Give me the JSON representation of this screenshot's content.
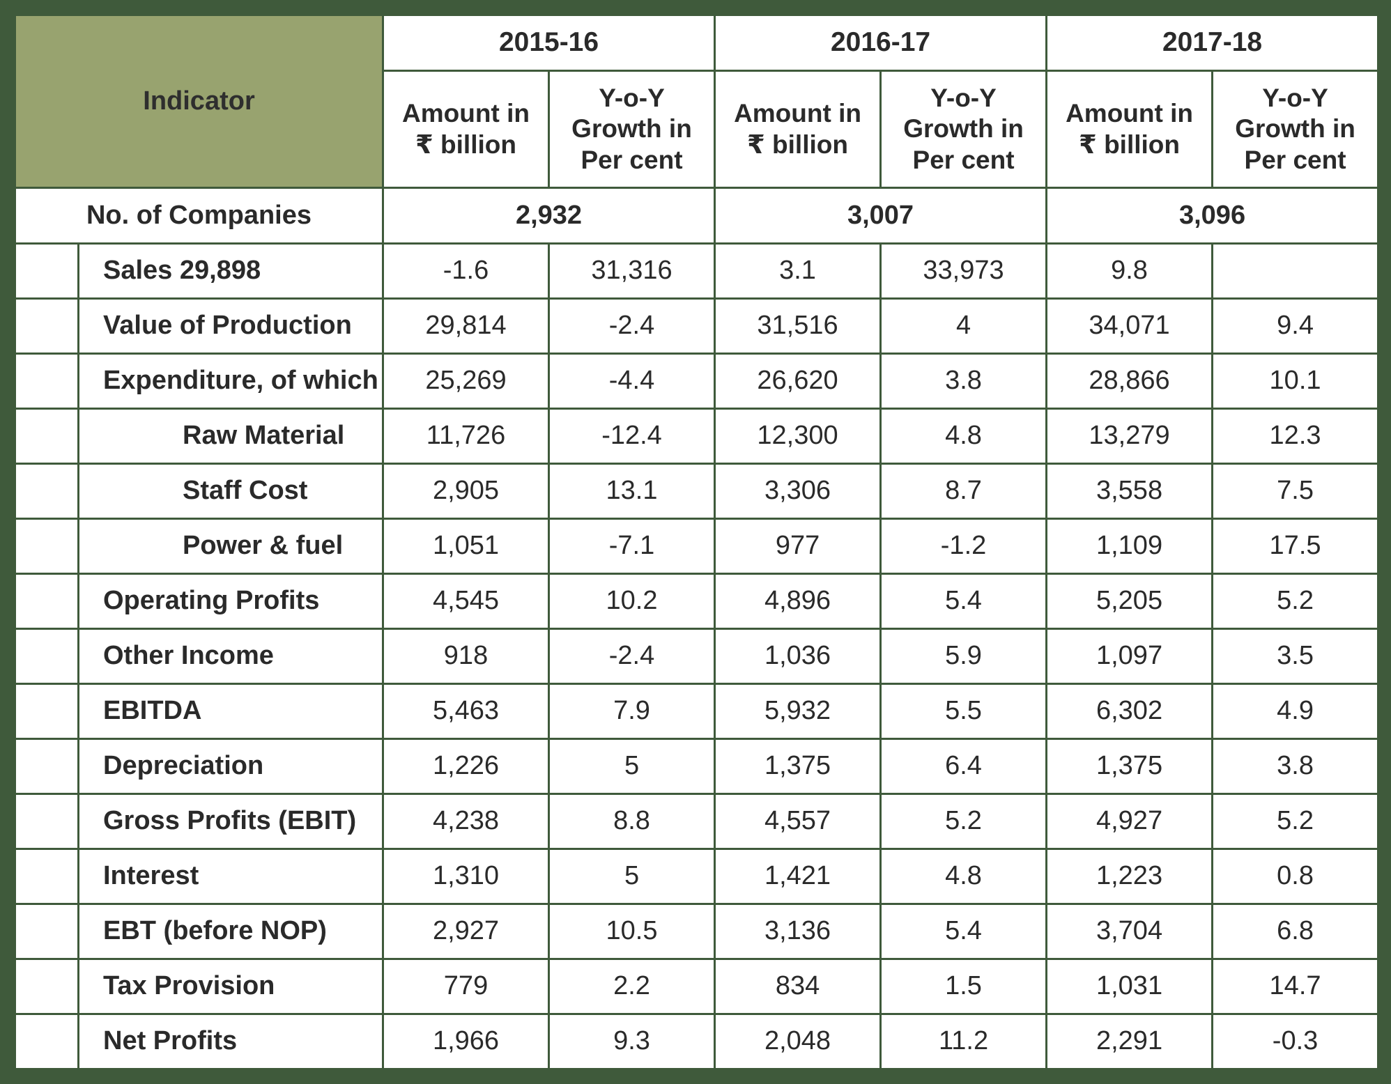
{
  "header": {
    "indicator": "Indicator",
    "years": [
      "2015-16",
      "2016-17",
      "2017-18"
    ],
    "amount_line1": "Amount in",
    "amount_line2": "₹ billion",
    "growth_line1": "Y-o-Y",
    "growth_line2": "Growth in",
    "growth_line3": "Per cent"
  },
  "companies": {
    "label": "No. of Companies",
    "values": [
      "2,932",
      "3,007",
      "3,096"
    ]
  },
  "rows": [
    {
      "label": "Sales  29,898",
      "cells": [
        "-1.6",
        "31,316",
        "3.1",
        "33,973",
        "9.8",
        ""
      ]
    },
    {
      "label": "Value of Production",
      "cells": [
        "29,814",
        "-2.4",
        "31,516",
        "4",
        "34,071",
        "9.4"
      ]
    },
    {
      "label": "Expenditure, of which",
      "cells": [
        "25,269",
        "-4.4",
        "26,620",
        "3.8",
        "28,866",
        "10.1"
      ]
    },
    {
      "label": "Raw Material",
      "cells": [
        "11,726",
        "-12.4",
        "12,300",
        "4.8",
        "13,279",
        "12.3"
      ]
    },
    {
      "label": "Staff Cost",
      "cells": [
        "2,905",
        "13.1",
        "3,306",
        "8.7",
        "3,558",
        "7.5"
      ]
    },
    {
      "label": "Power & fuel",
      "cells": [
        "1,051",
        "-7.1",
        "977",
        "-1.2",
        "1,109",
        "17.5"
      ]
    },
    {
      "label": "Operating Profits",
      "cells": [
        "4,545",
        "10.2",
        "4,896",
        "5.4",
        "5,205",
        "5.2"
      ]
    },
    {
      "label": "Other Income",
      "cells": [
        "918",
        "-2.4",
        "1,036",
        "5.9",
        "1,097",
        "3.5"
      ]
    },
    {
      "label": "EBITDA",
      "cells": [
        "5,463",
        "7.9",
        "5,932",
        "5.5",
        "6,302",
        "4.9"
      ]
    },
    {
      "label": "Depreciation",
      "cells": [
        "1,226",
        "5",
        "1,375",
        "6.4",
        "1,375",
        "3.8"
      ]
    },
    {
      "label": "Gross Profits (EBIT)",
      "cells": [
        "4,238",
        "8.8",
        "4,557",
        "5.2",
        "4,927",
        "5.2"
      ]
    },
    {
      "label": "Interest",
      "cells": [
        "1,310",
        "5",
        "1,421",
        "4.8",
        "1,223",
        "0.8"
      ]
    },
    {
      "label": "EBT (before NOP)",
      "cells": [
        "2,927",
        "10.5",
        "3,136",
        "5.4",
        "3,704",
        "6.8"
      ]
    },
    {
      "label": "Tax Provision",
      "cells": [
        "779",
        "2.2",
        "834",
        "1.5",
        "1,031",
        "14.7"
      ]
    },
    {
      "label": "Net Profits",
      "cells": [
        "1,966",
        "9.3",
        "2,048",
        "11.2",
        "2,291",
        "-0.3"
      ]
    }
  ]
}
